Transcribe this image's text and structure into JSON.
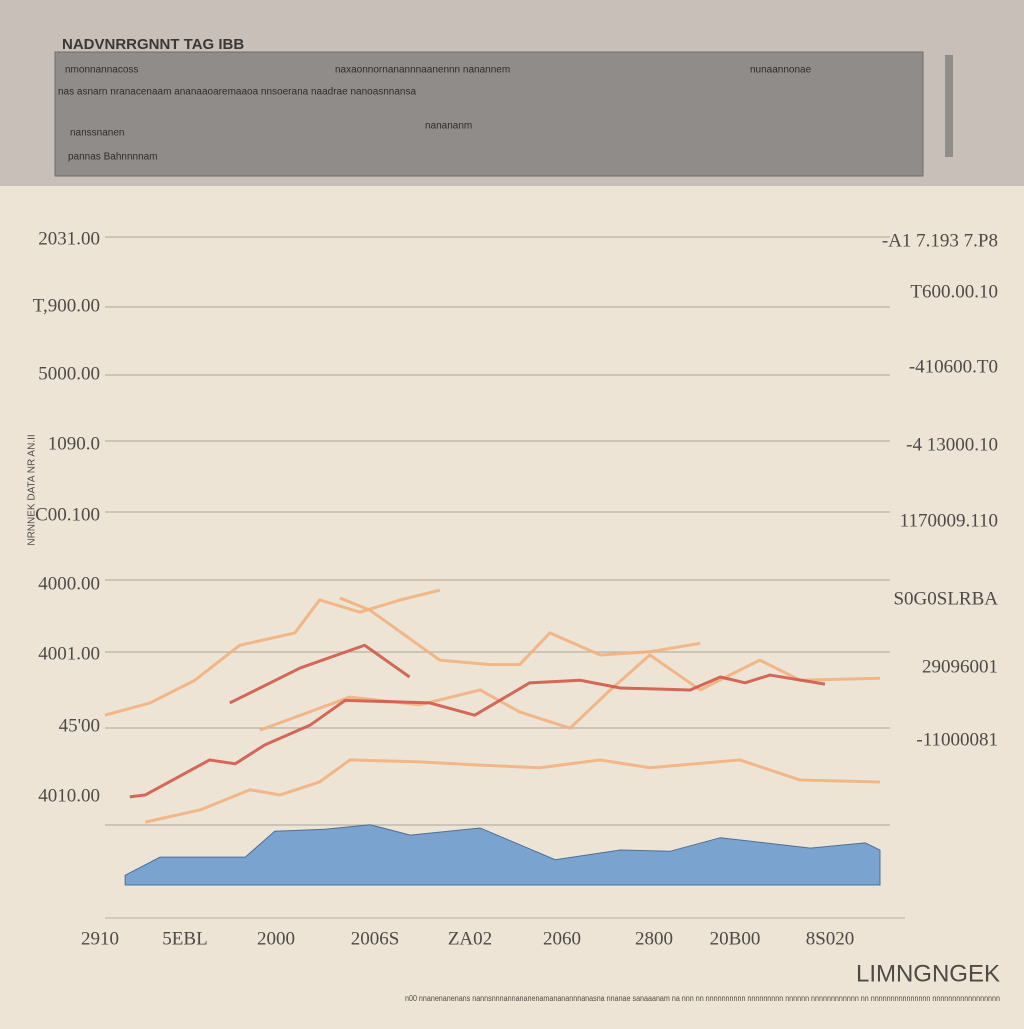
{
  "chart_data": {
    "type": "line",
    "title": "NADVNRRGNNT TAG IBB",
    "header_lines": [
      "nmonnannacoss",
      "naxaonnornanannnaanennn nanannem",
      "nunaannonae",
      "nas asnarn nranacenaam ananaaoaremaaoa nnsoerana naadrae nanoasnnansa",
      "nanssnanen",
      "nanananm",
      "pannas Bahnnnnam"
    ],
    "y_axis_title": "NRNNEK DATA NR AN.II",
    "y_axis_labels": [
      "2031.00",
      "T,900.00",
      "5000.00",
      "1090.0",
      "C00.100",
      "4000.00",
      "4001.00",
      "45'00",
      "4010.00"
    ],
    "y2_axis_labels": [
      "-A1 7.193 7.P8",
      "T600.00.10",
      "-410600.T0",
      "-4 13000.10",
      "1170009.110",
      "S0G0SLRBA",
      "29096001",
      "-11000081"
    ],
    "categories": [
      "2910",
      "5EBL",
      "2000",
      "2006S",
      "ZA02",
      "2060",
      "2800",
      "20B00",
      "8S020"
    ],
    "brand": "LIMNGNGEK",
    "footnote": "n00 nnanenanenans nannsnnnannananenamananannnanasna nnanae sanaaanam na nnn nn nnnnnnnnnn nnnnnnnnn nnnnnn nnnnnnnnnnnn nn nnnnnnnnnnnnnnn nnnnnnnnnnnnnnnnn",
    "xlim": [
      0,
      100
    ],
    "ylim": [
      0,
      100
    ],
    "series": [
      {
        "color": "#f2b07e",
        "x": [
          0,
          5.8,
          11.6,
          17.4,
          24.5,
          27.7,
          32.9,
          38.1,
          43.2
        ],
        "values": [
          26.2,
          28.1,
          31.6,
          37.0,
          38.9,
          44.0,
          42.1,
          44.0,
          45.5
        ]
      },
      {
        "color": "#f2b07e",
        "x": [
          30.3,
          34.2,
          43.2,
          49.7,
          53.5,
          57.4,
          63.9,
          70.3,
          76.8
        ],
        "values": [
          44.3,
          42.4,
          34.7,
          34.0,
          34.0,
          38.9,
          35.5,
          36.0,
          37.3
        ]
      },
      {
        "color": "#f2b07e",
        "x": [
          20.0,
          31.6,
          40.6,
          48.4,
          53.5,
          60.0,
          65.2,
          70.3,
          76.8,
          84.5,
          89.7,
          100
        ],
        "values": [
          23.9,
          29.0,
          27.8,
          30.1,
          26.7,
          24.2,
          30.1,
          35.5,
          30.1,
          34.7,
          31.6,
          31.9
        ]
      },
      {
        "color": "#f2b07e",
        "x": [
          5.2,
          12.3,
          18.7,
          22.6,
          27.7,
          31.6,
          40.6,
          48.4,
          56.1,
          63.9,
          70.3,
          81.9,
          89.7,
          100
        ],
        "values": [
          9.7,
          11.6,
          14.7,
          13.9,
          15.9,
          19.3,
          19.0,
          18.5,
          18.1,
          19.3,
          18.1,
          19.3,
          16.2,
          15.9
        ]
      },
      {
        "color": "#cf5a4b",
        "x": [
          16.1,
          25.2,
          33.5,
          39.3
        ],
        "values": [
          28.1,
          33.5,
          37.0,
          32.1
        ]
      },
      {
        "color": "#cf5a4b",
        "x": [
          3.2,
          5.2,
          13.5,
          16.8,
          20.6,
          26.5,
          31.0,
          41.9,
          47.7,
          54.8,
          61.3,
          66.5,
          75.5,
          79.4,
          82.6,
          85.8,
          92.9
        ],
        "values": [
          13.6,
          13.9,
          19.3,
          18.7,
          21.6,
          24.7,
          28.5,
          28.1,
          26.2,
          31.2,
          31.6,
          30.4,
          30.1,
          32.1,
          31.2,
          32.4,
          31.0
        ]
      },
      {
        "color": "#7ba3cf",
        "area": true,
        "x": [
          2.6,
          7.1,
          18.1,
          21.9,
          28.4,
          34.2,
          39.4,
          48.4,
          58.1,
          66.5,
          72.9,
          79.4,
          91.0,
          98.1,
          100
        ],
        "values": [
          1.5,
          4.3,
          4.3,
          8.3,
          8.6,
          9.3,
          7.7,
          8.8,
          3.9,
          5.4,
          5.2,
          7.3,
          5.7,
          6.5,
          5.4
        ]
      }
    ]
  }
}
